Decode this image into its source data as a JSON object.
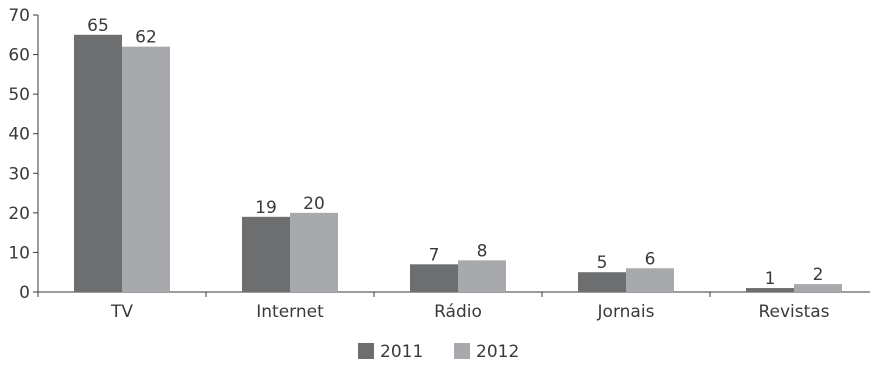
{
  "chart_data": {
    "type": "bar",
    "categories": [
      "TV",
      "Internet",
      "Rádio",
      "Jornais",
      "Revistas"
    ],
    "series": [
      {
        "name": "2011",
        "values": [
          65,
          19,
          7,
          5,
          1
        ],
        "color": "#6d6e70"
      },
      {
        "name": "2012",
        "values": [
          62,
          20,
          8,
          6,
          2
        ],
        "color": "#a7a9ac"
      }
    ],
    "title": "",
    "xlabel": "",
    "ylabel": "",
    "ylim": [
      0,
      70
    ],
    "yticks": [
      0,
      10,
      20,
      30,
      40,
      50,
      60,
      70
    ],
    "grid": false,
    "legend_position": "bottom-center"
  },
  "colors": {
    "axis": "#3a3a3a"
  }
}
